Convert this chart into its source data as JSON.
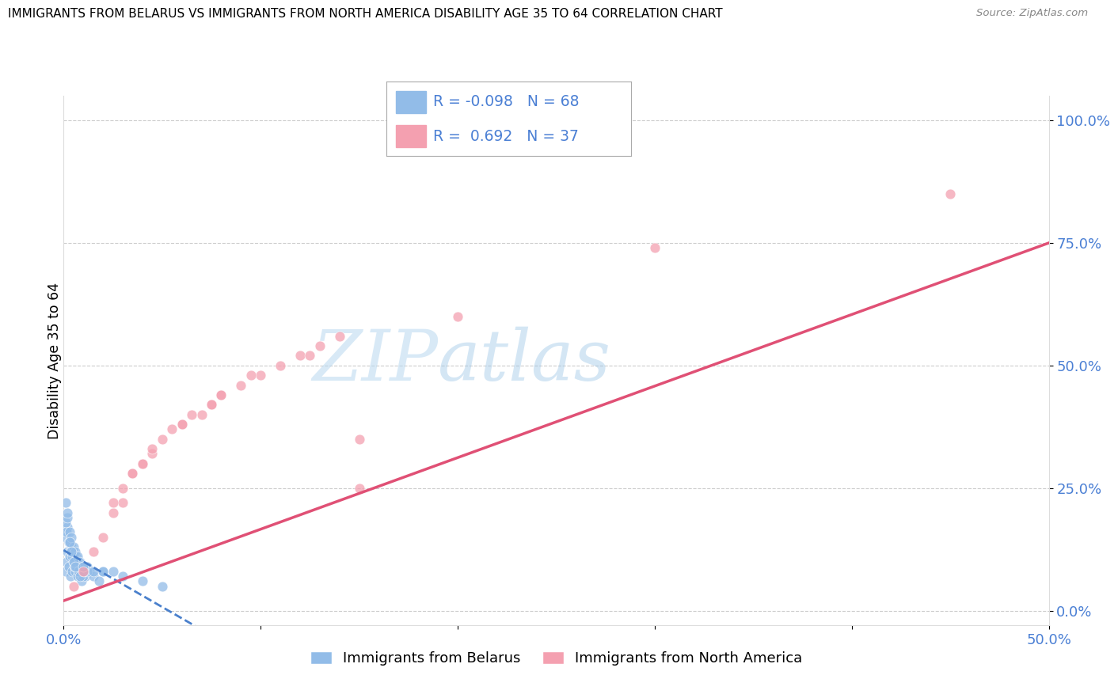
{
  "title": "IMMIGRANTS FROM BELARUS VS IMMIGRANTS FROM NORTH AMERICA DISABILITY AGE 35 TO 64 CORRELATION CHART",
  "source": "Source: ZipAtlas.com",
  "ylabel": "Disability Age 35 to 64",
  "R_blue": -0.098,
  "N_blue": 68,
  "R_pink": 0.692,
  "N_pink": 37,
  "legend_blue": "Immigrants from Belarus",
  "legend_pink": "Immigrants from North America",
  "watermark_zip": "ZIP",
  "watermark_atlas": "atlas",
  "blue_color": "#92bce8",
  "pink_color": "#f4a0b0",
  "trend_blue_color": "#4a80cc",
  "trend_pink_color": "#e05075",
  "xlim": [
    0,
    50
  ],
  "ylim": [
    -3,
    105
  ],
  "yticks": [
    0,
    25,
    50,
    75,
    100
  ],
  "ytick_labels": [
    "0.0%",
    "25.0%",
    "50.0%",
    "75.0%",
    "100.0%"
  ],
  "blue_scatter_x": [
    0.1,
    0.15,
    0.2,
    0.25,
    0.3,
    0.35,
    0.4,
    0.45,
    0.5,
    0.55,
    0.6,
    0.65,
    0.7,
    0.75,
    0.8,
    0.85,
    0.9,
    0.95,
    1.0,
    1.1,
    1.2,
    1.3,
    1.5,
    1.8,
    2.0,
    0.1,
    0.2,
    0.3,
    0.4,
    0.5,
    0.6,
    0.7,
    0.8,
    0.9,
    1.0,
    1.2,
    0.15,
    0.25,
    0.35,
    0.45,
    0.55,
    0.65,
    0.75,
    0.85,
    0.95,
    1.05,
    0.1,
    0.2,
    0.3,
    0.4,
    0.5,
    0.6,
    0.7,
    0.8,
    1.0,
    1.5,
    2.5,
    3.0,
    4.0,
    5.0,
    0.3,
    0.4,
    0.5,
    0.6,
    2.0,
    1.0,
    0.2,
    0.1
  ],
  "blue_scatter_y": [
    8,
    10,
    12,
    9,
    11,
    7,
    13,
    8,
    10,
    9,
    8,
    11,
    7,
    9,
    8,
    10,
    6,
    9,
    8,
    7,
    9,
    8,
    7,
    6,
    8,
    15,
    17,
    14,
    13,
    11,
    9,
    10,
    8,
    9,
    7,
    8,
    16,
    14,
    12,
    11,
    10,
    9,
    8,
    7,
    9,
    8,
    18,
    19,
    16,
    15,
    13,
    12,
    11,
    10,
    9,
    8,
    8,
    7,
    6,
    5,
    14,
    12,
    10,
    9,
    8,
    9,
    20,
    22
  ],
  "pink_scatter_x": [
    0.5,
    1.0,
    1.5,
    2.0,
    2.5,
    3.0,
    3.5,
    4.0,
    4.5,
    5.0,
    6.0,
    7.0,
    7.5,
    8.0,
    9.0,
    10.0,
    11.0,
    12.0,
    13.0,
    14.0,
    15.0,
    3.0,
    4.0,
    5.5,
    6.5,
    7.5,
    9.5,
    12.5,
    2.5,
    3.5,
    4.5,
    6.0,
    8.0,
    20.0,
    30.0,
    45.0,
    15.0
  ],
  "pink_scatter_y": [
    5,
    8,
    12,
    15,
    20,
    22,
    28,
    30,
    32,
    35,
    38,
    40,
    42,
    44,
    46,
    48,
    50,
    52,
    54,
    56,
    35,
    25,
    30,
    37,
    40,
    42,
    48,
    52,
    22,
    28,
    33,
    38,
    44,
    60,
    74,
    85,
    25
  ]
}
